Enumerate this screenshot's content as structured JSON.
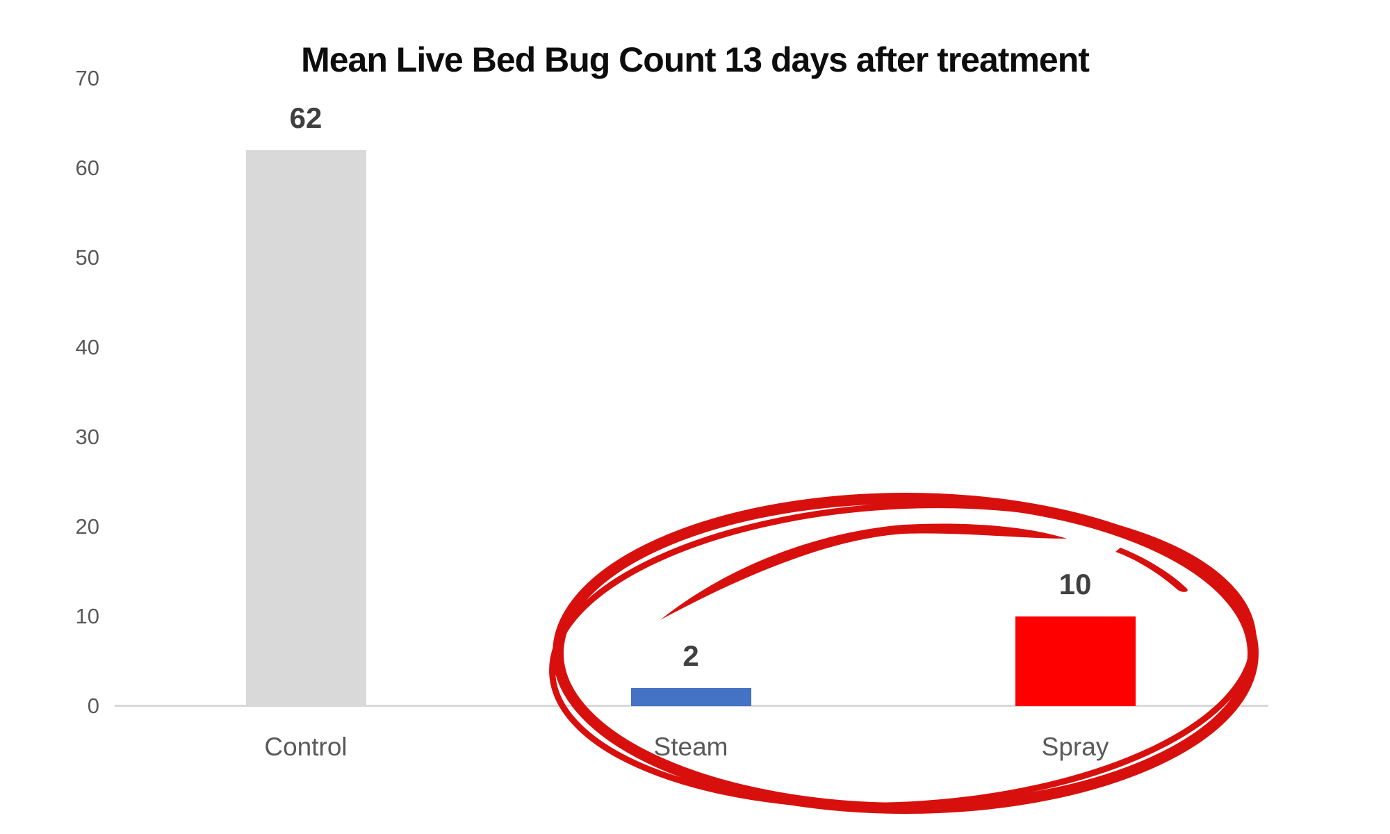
{
  "page": {
    "background_color": "#ffffff"
  },
  "chart_data": {
    "type": "bar",
    "title": "Mean Live Bed Bug Count 13 days after treatment",
    "categories": [
      "Control",
      "Steam",
      "Spray"
    ],
    "values": [
      62,
      2,
      10
    ],
    "value_labels": [
      "62",
      "2",
      "10"
    ],
    "bar_colors": [
      "#d9d9d9",
      "#4472c4",
      "#fe0000"
    ],
    "y_ticks": [
      70,
      60,
      50,
      40,
      30,
      20,
      10,
      0
    ],
    "ylim": [
      0,
      70
    ],
    "xlabel": "",
    "ylabel": "",
    "grid": false,
    "legend": "none",
    "axis_line_color": "#d9d9d9",
    "tick_label_color": "#595959",
    "category_label_color": "#595959",
    "value_label_color": "#404040",
    "title_color": "#0d0d0d",
    "annotation": {
      "shape": "hand-drawn-circle",
      "color": "#d8100d",
      "encircles": [
        "Steam",
        "Spray"
      ]
    }
  }
}
